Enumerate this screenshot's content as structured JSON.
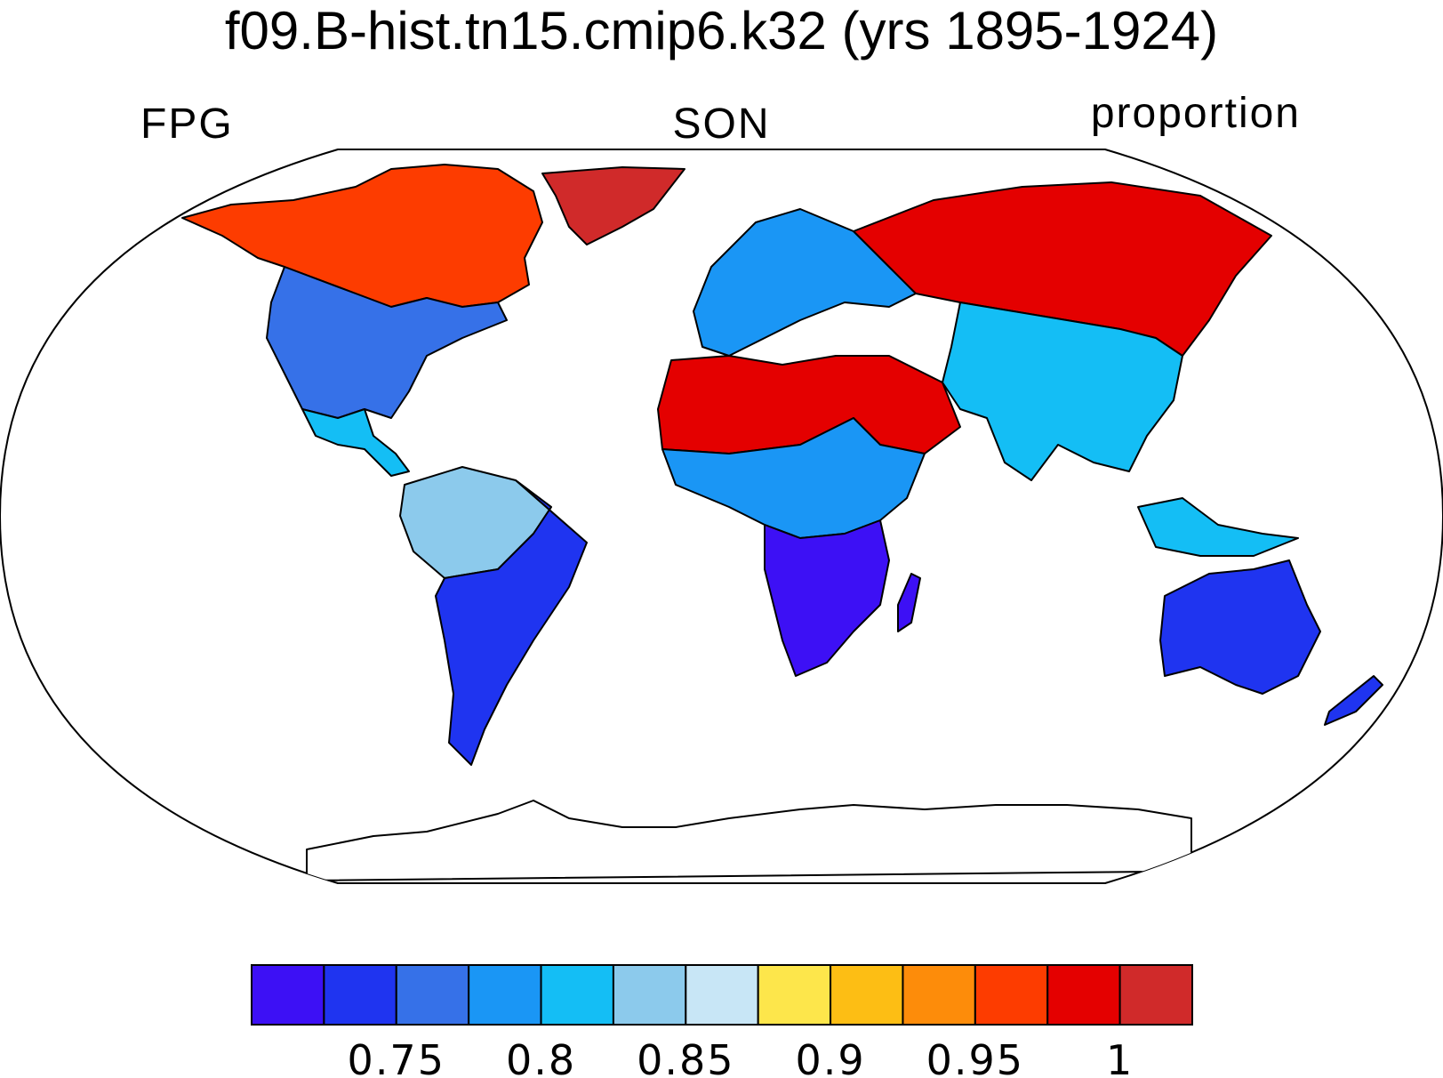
{
  "title": "f09.B-hist.tn15.cmip6.k32 (yrs 1895-1924)",
  "subtitle_left": "FPG",
  "subtitle_center": "SON",
  "subtitle_right": "proportion",
  "colorbar": {
    "colors": [
      "#3d10f5",
      "#1f34f0",
      "#3671e8",
      "#1a96f5",
      "#14bef5",
      "#8ccaec",
      "#c8e6f6",
      "#fde64b",
      "#fdbe14",
      "#fd8c0a",
      "#fd3c00",
      "#e40000",
      "#d02a2a"
    ],
    "tick_labels": [
      "0.75",
      "0.8",
      "0.85",
      "0.9",
      "0.95",
      "1"
    ],
    "tick_after_bin": [
      2,
      4,
      6,
      8,
      10,
      12
    ]
  },
  "map_regions": [
    {
      "name": "Canada-Alaska",
      "color": "#fd3c00"
    },
    {
      "name": "Greenland-edge",
      "color": "#d02a2a"
    },
    {
      "name": "USA",
      "color": "#3671e8"
    },
    {
      "name": "Central-America",
      "color": "#14bef5"
    },
    {
      "name": "Amazon",
      "color": "#8ccaec"
    },
    {
      "name": "South-America",
      "color": "#1f34f0"
    },
    {
      "name": "Europe",
      "color": "#1a96f5"
    },
    {
      "name": "Siberia",
      "color": "#e40000"
    },
    {
      "name": "Sahara-Arabia",
      "color": "#e40000"
    },
    {
      "name": "Sahel",
      "color": "#1a96f5"
    },
    {
      "name": "Southern-Africa",
      "color": "#3d10f5"
    },
    {
      "name": "India-SE-Asia",
      "color": "#14bef5"
    },
    {
      "name": "Australia",
      "color": "#1f34f0"
    }
  ]
}
